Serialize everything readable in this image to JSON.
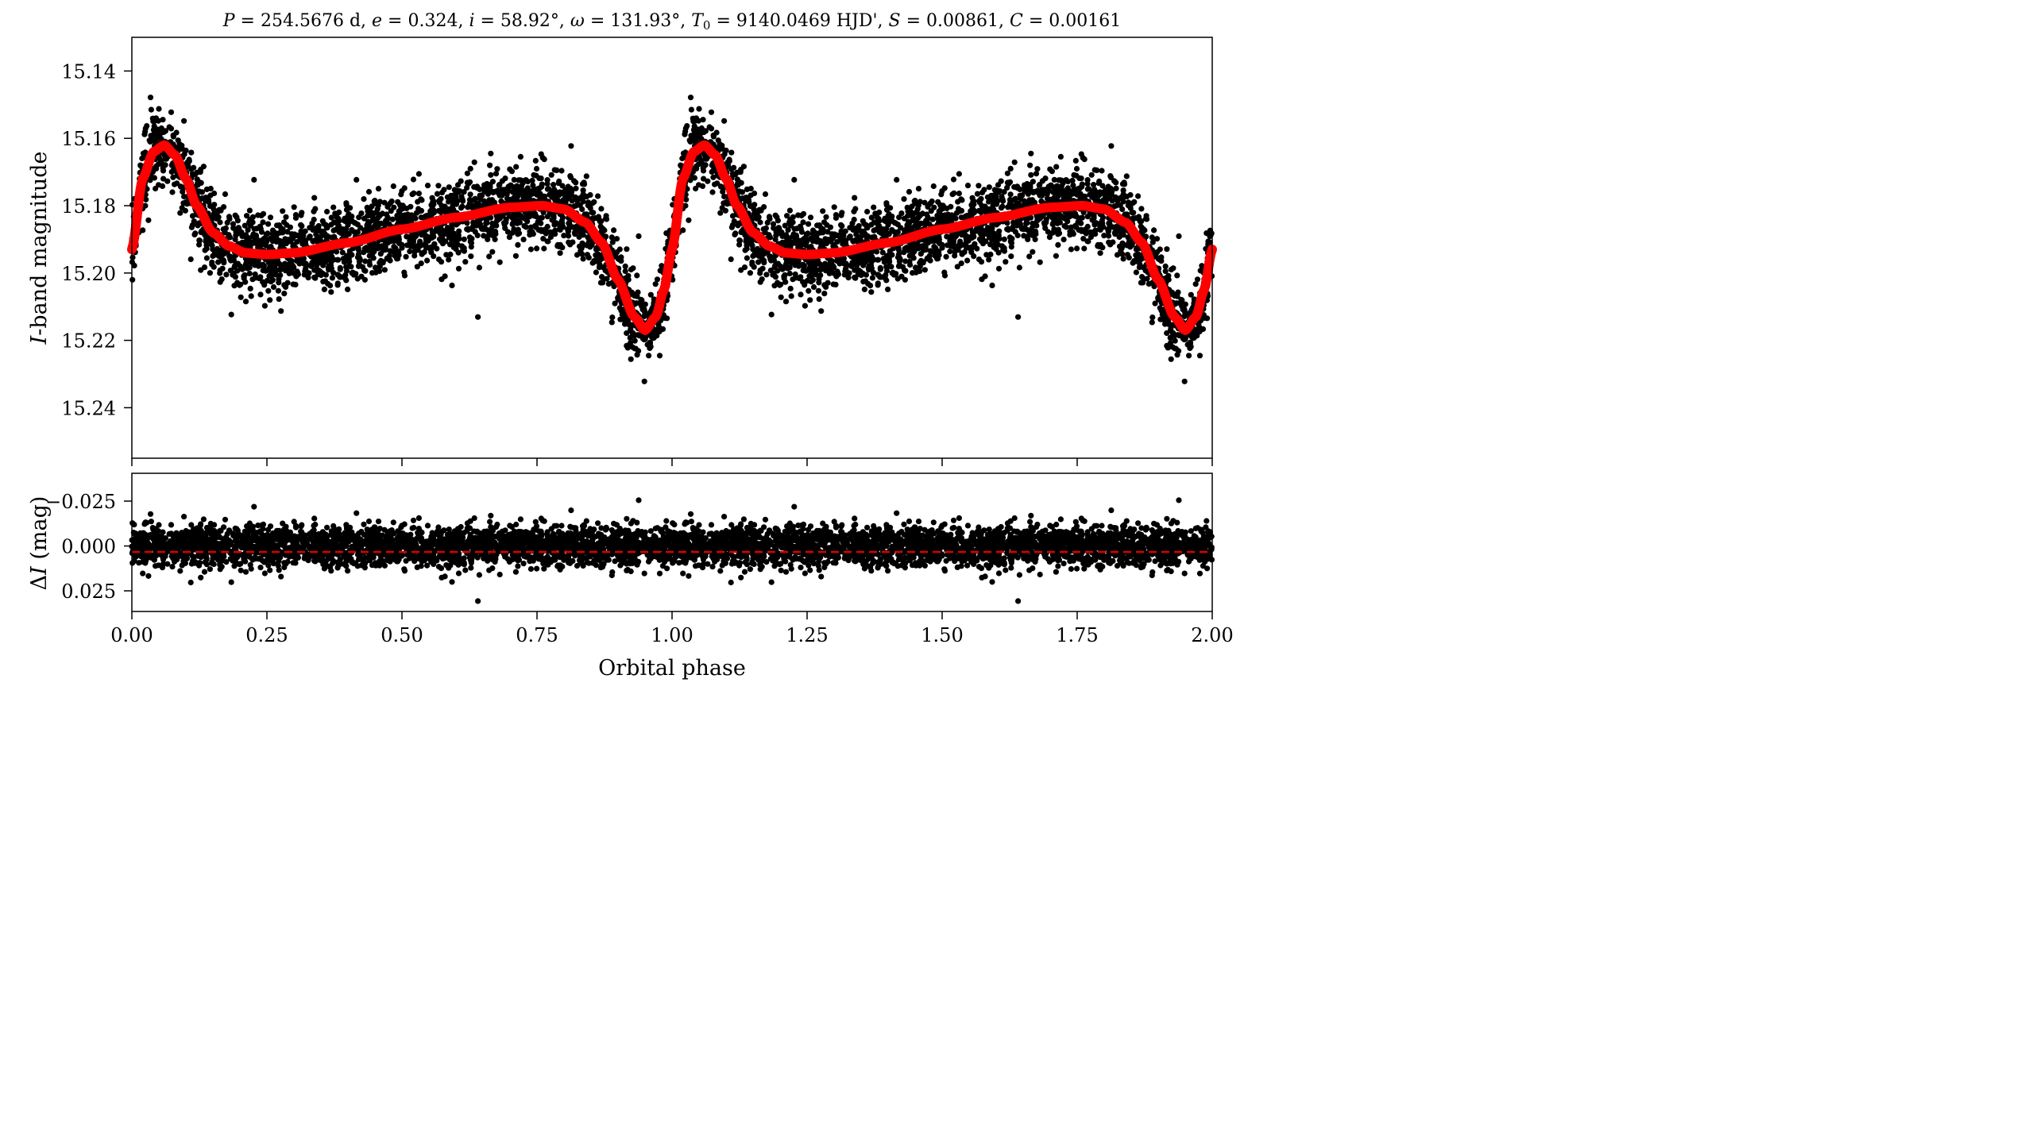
{
  "chart_data": [
    {
      "type": "scatter",
      "title": "P = 254.5676 d, e = 0.324, i = 58.92°, ω = 131.93°, T0 = 9140.0469 HJD', S = 0.00861, C = 0.00161",
      "title_parts": {
        "P_sym": "P",
        "P_val": " = 254.5676 d, ",
        "e_sym": "e",
        "e_val": " = 0.324, ",
        "i_sym": "i",
        "i_val": " = 58.92°, ",
        "w_sym": "ω",
        "w_val": " = 131.93°, ",
        "T_sym": "T",
        "T_sub": "0",
        "T_val": " = 9140.0469 HJD', ",
        "S_sym": "S",
        "S_val": " = 0.00861, ",
        "C_sym": "C",
        "C_val": " = 0.00161"
      },
      "ylabel_italic": "I",
      "ylabel_rest": "-band magnitude",
      "xlim": [
        0,
        2
      ],
      "ylim": [
        15.13,
        15.255
      ],
      "y_inverted": true,
      "yticks": [
        "15.14",
        "15.16",
        "15.18",
        "15.20",
        "15.22",
        "15.24"
      ],
      "ytick_values": [
        15.14,
        15.16,
        15.18,
        15.2,
        15.22,
        15.24
      ],
      "xticks_values": [
        0,
        0.25,
        0.5,
        0.75,
        1.0,
        1.25,
        1.5,
        1.75,
        2.0
      ],
      "series": [
        {
          "kind": "observations",
          "color": "#000000",
          "note_scatter_sigma": 0.0075
        },
        {
          "kind": "model",
          "color": "#ff0000",
          "model_phase": [
            0,
            0.02,
            0.04,
            0.06,
            0.08,
            0.1,
            0.12,
            0.15,
            0.18,
            0.21,
            0.25,
            0.3,
            0.4,
            0.5,
            0.6,
            0.7,
            0.76,
            0.8,
            0.84,
            0.87,
            0.9,
            0.93,
            0.95,
            0.97,
            0.985,
            1.0
          ],
          "model_mag": [
            15.193,
            15.172,
            15.164,
            15.162,
            15.165,
            15.172,
            15.18,
            15.188,
            15.192,
            15.194,
            15.1945,
            15.194,
            15.191,
            15.187,
            15.1835,
            15.1805,
            15.18,
            15.181,
            15.185,
            15.191,
            15.202,
            15.213,
            15.217,
            15.213,
            15.205,
            15.193
          ]
        }
      ]
    },
    {
      "type": "scatter",
      "xlabel": "Orbital phase",
      "ylabel_prefix": "Δ",
      "ylabel_italic": "I",
      "ylabel_rest": " (mag)",
      "xlim": [
        0,
        2
      ],
      "ylim": [
        -0.0405,
        0.0365
      ],
      "y_inverted": true,
      "yticks": [
        "−0.025",
        "0.000",
        "0.025"
      ],
      "ytick_values": [
        -0.025,
        0.0,
        0.025
      ],
      "xticks": [
        "0.00",
        "0.25",
        "0.50",
        "0.75",
        "1.00",
        "1.25",
        "1.50",
        "1.75",
        "2.00"
      ],
      "xticks_values": [
        0,
        0.25,
        0.5,
        0.75,
        1.0,
        1.25,
        1.5,
        1.75,
        2.0
      ],
      "series": [
        {
          "kind": "residuals",
          "color": "#000000",
          "note_scatter_sigma": 0.0075
        },
        {
          "kind": "zero-line",
          "color": "#dd0000",
          "linestyle": "dashed",
          "value": 0.0
        }
      ]
    }
  ]
}
